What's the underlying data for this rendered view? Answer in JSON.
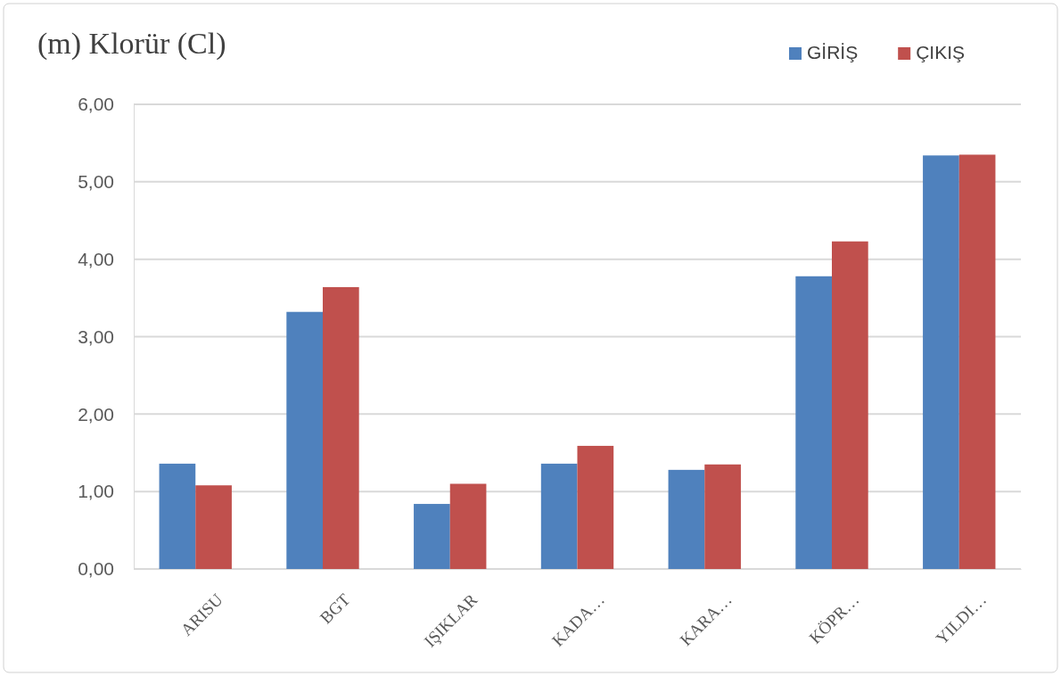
{
  "chart_data": {
    "type": "bar",
    "title": "(m) Klorür (Cl)",
    "categories": [
      "ARISU",
      "BGT",
      "IŞIKLAR",
      "KADA…",
      "KARA…",
      "KÖPR…",
      "YILDI…"
    ],
    "series": [
      {
        "name": "GİRİŞ",
        "color": "#4f81bd",
        "values": [
          1.36,
          3.32,
          0.84,
          1.36,
          1.28,
          3.78,
          5.34
        ]
      },
      {
        "name": "ÇIKIŞ",
        "color": "#c0504d",
        "values": [
          1.08,
          3.64,
          1.1,
          1.59,
          1.35,
          4.23,
          5.35
        ]
      }
    ],
    "ylim": [
      0,
      6
    ],
    "yticks": [
      {
        "value": 0,
        "label": "0,00"
      },
      {
        "value": 1,
        "label": "1,00"
      },
      {
        "value": 2,
        "label": "2,00"
      },
      {
        "value": 3,
        "label": "3,00"
      },
      {
        "value": 4,
        "label": "4,00"
      },
      {
        "value": 5,
        "label": "5,00"
      },
      {
        "value": 6,
        "label": "6,00"
      }
    ],
    "grid": "y",
    "legend": "top right"
  }
}
